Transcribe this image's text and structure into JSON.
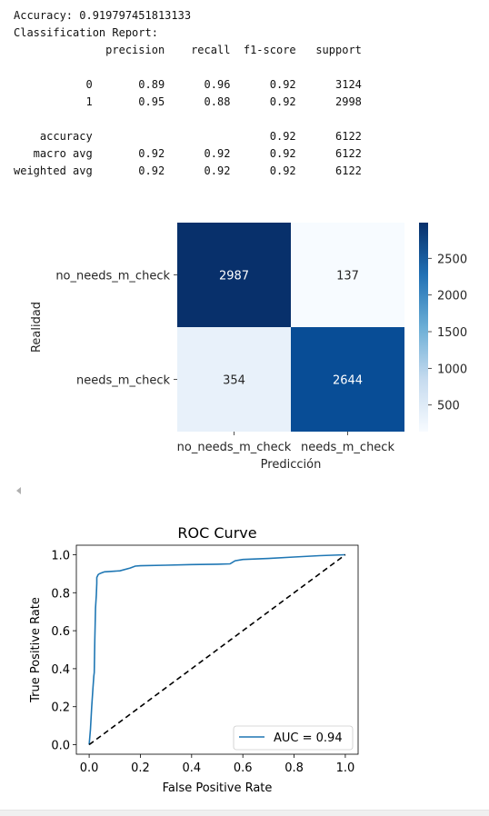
{
  "report": {
    "lines": [
      "Accuracy: 0.919797451813133",
      "Classification Report:",
      "              precision    recall  f1-score   support",
      "",
      "           0       0.89      0.96      0.92      3124",
      "           1       0.95      0.88      0.92      2998",
      "",
      "    accuracy                           0.92      6122",
      "   macro avg       0.92      0.92      0.92      6122",
      "weighted avg       0.92      0.92      0.92      6122"
    ]
  },
  "confusion_matrix": {
    "ylabel": "Realidad",
    "xlabel": "Predicción",
    "row_labels": [
      "no_needs_m_check",
      "needs_m_check"
    ],
    "col_labels": [
      "no_needs_m_check",
      "needs_m_check"
    ],
    "cells": [
      [
        "2987",
        "137"
      ],
      [
        "354",
        "2644"
      ]
    ],
    "cell_colors": [
      [
        "#08306b",
        "#f7fbff"
      ],
      [
        "#e8f1fa",
        "#084d96"
      ]
    ],
    "cell_text_colors": [
      [
        "#ffffff",
        "#262626"
      ],
      [
        "#262626",
        "#ffffff"
      ]
    ],
    "colorbar_ticks": [
      "2500",
      "2000",
      "1500",
      "1000",
      "500"
    ]
  },
  "chart_data": [
    {
      "type": "heatmap",
      "rows": [
        "no_needs_m_check",
        "needs_m_check"
      ],
      "columns": [
        "no_needs_m_check",
        "needs_m_check"
      ],
      "values": [
        [
          2987,
          137
        ],
        [
          354,
          2644
        ]
      ],
      "xlabel": "Predicción",
      "ylabel": "Realidad",
      "colormap": "Blues",
      "colorbar_range": [
        137,
        2987
      ],
      "colorbar_ticks": [
        2500,
        2000,
        1500,
        1000,
        500
      ]
    },
    {
      "type": "line",
      "title": "ROC Curve",
      "xlabel": "False Positive Rate",
      "ylabel": "True Positive Rate",
      "xlim": [
        -0.05,
        1.05
      ],
      "ylim": [
        -0.05,
        1.05
      ],
      "x_ticks": [
        "0.0",
        "0.2",
        "0.4",
        "0.6",
        "0.8",
        "1.0"
      ],
      "y_ticks": [
        "0.0",
        "0.2",
        "0.4",
        "0.6",
        "0.8",
        "1.0"
      ],
      "legend_position": "lower right",
      "series": [
        {
          "name": "AUC = 0.94",
          "color": "#1f77b4",
          "x": [
            0.0,
            0.005,
            0.01,
            0.015,
            0.018,
            0.02,
            0.022,
            0.025,
            0.028,
            0.03,
            0.03,
            0.035,
            0.04,
            0.05,
            0.06,
            0.08,
            0.12,
            0.16,
            0.18,
            0.2,
            0.3,
            0.4,
            0.5,
            0.55,
            0.57,
            0.6,
            0.7,
            0.8,
            0.9,
            1.0
          ],
          "y": [
            0.0,
            0.08,
            0.2,
            0.3,
            0.36,
            0.38,
            0.55,
            0.72,
            0.79,
            0.85,
            0.88,
            0.895,
            0.9,
            0.905,
            0.91,
            0.912,
            0.915,
            0.93,
            0.94,
            0.942,
            0.945,
            0.948,
            0.95,
            0.952,
            0.968,
            0.975,
            0.98,
            0.988,
            0.995,
            1.0
          ]
        },
        {
          "name": "",
          "color": "#000000",
          "dashed": true,
          "x": [
            0.0,
            1.0
          ],
          "y": [
            0.0,
            1.0
          ]
        }
      ]
    }
  ]
}
